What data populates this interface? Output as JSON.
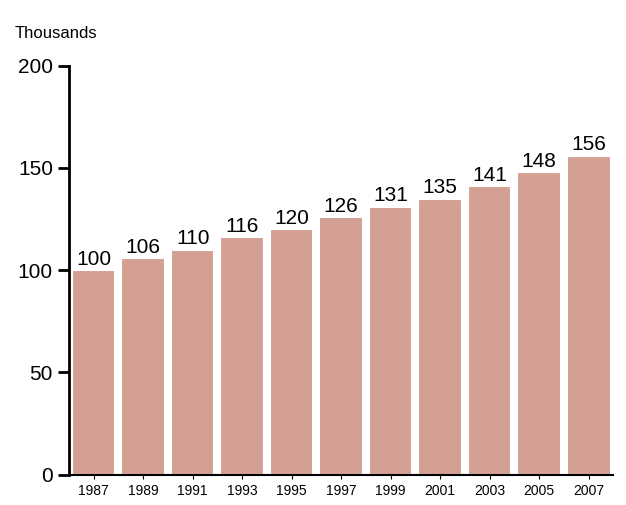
{
  "chart_data": {
    "type": "bar",
    "y_label": "Thousands",
    "categories": [
      "1987",
      "1989",
      "1991",
      "1993",
      "1995",
      "1997",
      "1999",
      "2001",
      "2003",
      "2005",
      "2007"
    ],
    "values": [
      100,
      106,
      110,
      116,
      120,
      126,
      131,
      135,
      141,
      148,
      156
    ],
    "color": "#d4a093",
    "ylim": [
      0,
      200
    ],
    "yticks": [
      0,
      50,
      100,
      150,
      200
    ],
    "grid": false,
    "data_labels": true
  }
}
